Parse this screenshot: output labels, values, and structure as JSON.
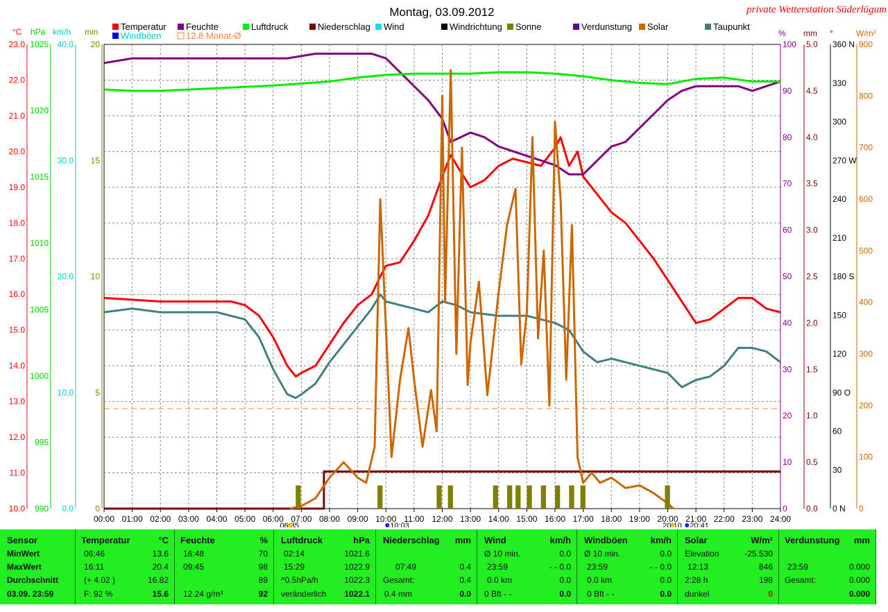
{
  "title": "Montag, 03.09.2012",
  "station": "private Wetterstation Süderlügum",
  "chart_data": {
    "type": "line",
    "x_range_hours": [
      0,
      24
    ],
    "x_ticks": [
      "00:00",
      "01:00",
      "02:00",
      "03:00",
      "04:00",
      "05:00",
      "06:00",
      "07:00",
      "08:00",
      "09:00",
      "10:00",
      "11:00",
      "12:00",
      "13:00",
      "14:00",
      "15:00",
      "16:00",
      "17:00",
      "18:00",
      "19:00",
      "20:00",
      "21:00",
      "22:00",
      "23:00",
      "24:00"
    ],
    "x_marks": [
      "06:35",
      "10:03",
      "20:10",
      "20:41"
    ],
    "legend": [
      {
        "name": "Temperatur",
        "color": "#ff0000"
      },
      {
        "name": "Feuchte",
        "color": "#800080"
      },
      {
        "name": "Luftdruck",
        "color": "#00ee00"
      },
      {
        "name": "Niederschlag",
        "color": "#800000"
      },
      {
        "name": "Wind",
        "color": "#00e5ee"
      },
      {
        "name": "Windrichtung",
        "color": "#000000"
      },
      {
        "name": "Sonne",
        "color": "#808000"
      },
      {
        "name": "Verdunstung",
        "color": "#660099"
      },
      {
        "name": "Solar",
        "color": "#cc6600"
      },
      {
        "name": "Taupunkt",
        "color": "#408080"
      },
      {
        "name": "Windböen",
        "color": "#0000ff"
      },
      {
        "name": "12.8 Monat-Ø",
        "color": "#ff8040"
      }
    ],
    "axes": {
      "temp": {
        "unit": "°C",
        "range": [
          10,
          23
        ],
        "ticks": [
          "23.0",
          "22.0",
          "21.0",
          "20.0",
          "19.0",
          "18.0",
          "17.0",
          "16.0",
          "15.0",
          "14.0",
          "13.0",
          "12.0",
          "11.0",
          "10.0"
        ]
      },
      "press": {
        "unit": "hPa",
        "range": [
          990,
          1025
        ],
        "ticks": [
          "1025",
          "1020",
          "1015",
          "1010",
          "1005",
          "1000",
          "995",
          "990"
        ]
      },
      "wind": {
        "unit": "km/h",
        "range": [
          0,
          40
        ],
        "ticks": [
          "40.0",
          "30.0",
          "20.0",
          "10.0",
          "0.0"
        ]
      },
      "sun": {
        "unit": "min",
        "range": [
          0,
          20
        ],
        "ticks": [
          "20",
          "15",
          "10",
          "5",
          "0"
        ]
      },
      "humidity": {
        "unit": "%",
        "range": [
          0,
          100
        ],
        "ticks": [
          "100",
          "90",
          "80",
          "70",
          "60",
          "50",
          "40",
          "30",
          "20",
          "10",
          "0"
        ]
      },
      "rain": {
        "unit": "mm",
        "range": [
          0,
          5
        ],
        "ticks": [
          "5.0",
          "4.5",
          "4.0",
          "3.5",
          "3.0",
          "2.5",
          "2.0",
          "1.5",
          "1.0",
          "0.5",
          "0.0"
        ]
      },
      "direction": {
        "unit": "°",
        "range": [
          0,
          360
        ],
        "ticks": [
          "360 N",
          "330",
          "300",
          "270 W",
          "240",
          "210",
          "180 S",
          "150",
          "120",
          "90 O",
          "60",
          "30",
          "0 N"
        ]
      },
      "solar": {
        "unit": "W/m²",
        "range": [
          0,
          900
        ],
        "ticks": [
          "900",
          "800",
          "700",
          "600",
          "500",
          "400",
          "300",
          "200",
          "100",
          "0"
        ]
      }
    },
    "series": [
      {
        "name": "Temperatur",
        "axis": "temp",
        "color": "#ff0000",
        "x": [
          0,
          2,
          3.5,
          4.5,
          5,
          5.5,
          6,
          6.5,
          6.8,
          7,
          7.5,
          8,
          8.5,
          9,
          9.5,
          9.8,
          10,
          10.5,
          11,
          11.5,
          12,
          12.3,
          12.6,
          13,
          13.5,
          14,
          14.5,
          15,
          15.5,
          16,
          16.2,
          16.5,
          16.8,
          17,
          17.5,
          18,
          18.5,
          19,
          19.5,
          20,
          20.5,
          21,
          21.5,
          22,
          22.5,
          23,
          23.5,
          24
        ],
        "y": [
          15.9,
          15.8,
          15.8,
          15.8,
          15.7,
          15.4,
          14.8,
          14.0,
          13.7,
          13.8,
          14.0,
          14.6,
          15.2,
          15.7,
          16.0,
          16.5,
          16.8,
          16.9,
          17.5,
          18.2,
          19.3,
          19.9,
          19.5,
          19.0,
          19.2,
          19.6,
          19.8,
          19.7,
          19.6,
          20.1,
          20.4,
          19.6,
          20.0,
          19.3,
          18.8,
          18.3,
          18.0,
          17.5,
          17.0,
          16.4,
          15.8,
          15.2,
          15.3,
          15.6,
          15.9,
          15.9,
          15.6,
          15.5
        ]
      },
      {
        "name": "Feuchte",
        "axis": "humidity",
        "color": "#800080",
        "x": [
          0,
          1,
          5,
          6.5,
          7.5,
          9,
          9.5,
          10,
          10.5,
          11,
          11.5,
          12,
          12.3,
          13,
          13.5,
          14,
          15,
          16,
          16.5,
          17,
          17.5,
          18,
          18.5,
          19,
          19.5,
          20,
          20.5,
          21,
          21.5,
          22,
          22.5,
          23,
          23.5,
          24
        ],
        "y": [
          96,
          97,
          97,
          97,
          98,
          98,
          98,
          97,
          94,
          91,
          88,
          84,
          79,
          81,
          80,
          78,
          76,
          74,
          72,
          72,
          75,
          78,
          79,
          82,
          85,
          88,
          90,
          91,
          91,
          91,
          91,
          90,
          91,
          92
        ]
      },
      {
        "name": "Luftdruck",
        "axis": "press",
        "color": "#00ee00",
        "x": [
          0,
          1,
          2,
          4,
          6,
          8,
          9,
          10,
          11,
          12,
          13,
          14,
          15,
          16,
          17,
          18,
          19,
          20,
          21,
          22,
          23,
          24
        ],
        "y": [
          1021.6,
          1021.5,
          1021.5,
          1021.7,
          1021.9,
          1022.2,
          1022.5,
          1022.7,
          1022.8,
          1022.8,
          1022.8,
          1022.9,
          1022.9,
          1022.8,
          1022.6,
          1022.3,
          1022.1,
          1022.0,
          1022.4,
          1022.5,
          1022.2,
          1022.2
        ]
      },
      {
        "name": "Taupunkt",
        "axis": "temp",
        "color": "#408080",
        "x": [
          0,
          1,
          2,
          3,
          4,
          5,
          5.5,
          6,
          6.5,
          6.8,
          7,
          7.5,
          8,
          8.5,
          9,
          9.5,
          9.8,
          10,
          10.5,
          11,
          11.5,
          12,
          12.5,
          13,
          14,
          15,
          16,
          16.5,
          17,
          17.5,
          18,
          19,
          20,
          20.5,
          21,
          21.5,
          22,
          22.5,
          23,
          23.5,
          24
        ],
        "y": [
          15.5,
          15.6,
          15.5,
          15.5,
          15.5,
          15.3,
          14.8,
          13.9,
          13.2,
          13.1,
          13.2,
          13.5,
          14.1,
          14.6,
          15.1,
          15.6,
          16.0,
          15.8,
          15.7,
          15.6,
          15.5,
          15.8,
          15.7,
          15.5,
          15.4,
          15.4,
          15.2,
          15.0,
          14.4,
          14.1,
          14.2,
          14.0,
          13.8,
          13.4,
          13.6,
          13.7,
          14.0,
          14.5,
          14.5,
          14.4,
          14.1
        ]
      },
      {
        "name": "Niederschlag",
        "axis": "rain",
        "color": "#800000",
        "x": [
          0,
          7.8,
          7.8,
          24
        ],
        "y": [
          0,
          0,
          0.4,
          0.4
        ]
      },
      {
        "name": "Solar",
        "axis": "solar",
        "color": "#cc6600",
        "x": [
          6.6,
          7.0,
          7.5,
          8.0,
          8.5,
          9.0,
          9.3,
          9.6,
          9.8,
          10.0,
          10.2,
          10.5,
          10.8,
          11.0,
          11.3,
          11.6,
          11.8,
          12.0,
          12.1,
          12.3,
          12.5,
          12.7,
          12.9,
          13.0,
          13.3,
          13.6,
          14.0,
          14.3,
          14.6,
          14.8,
          15.0,
          15.2,
          15.4,
          15.6,
          15.8,
          16.0,
          16.2,
          16.4,
          16.6,
          16.8,
          17.0,
          17.3,
          17.6,
          18.0,
          18.5,
          19.0,
          19.5,
          20.0,
          20.2
        ],
        "y": [
          0,
          5,
          20,
          60,
          90,
          60,
          50,
          120,
          600,
          350,
          100,
          250,
          350,
          250,
          120,
          230,
          150,
          800,
          400,
          850,
          300,
          700,
          240,
          320,
          440,
          220,
          420,
          550,
          620,
          280,
          380,
          720,
          330,
          500,
          200,
          750,
          600,
          250,
          550,
          100,
          50,
          70,
          50,
          60,
          40,
          45,
          30,
          10,
          0
        ]
      },
      {
        "name": "Sonne",
        "axis": "sun",
        "color": "#808000",
        "type": "bar",
        "x": [
          6.8,
          9.7,
          11.8,
          12.2,
          13.8,
          14.3,
          14.6,
          15.0,
          15.5,
          16.0,
          16.5,
          16.9,
          19.9
        ],
        "y": [
          1,
          1,
          1,
          1,
          1,
          1,
          1,
          1,
          1,
          1,
          1,
          1,
          1
        ]
      },
      {
        "name": "12.8 Monat-Ø",
        "axis": "temp",
        "color": "#ff8040",
        "type": "hline",
        "y": [
          12.8
        ]
      }
    ]
  },
  "stats": {
    "sensor": {
      "h": "Sensor",
      "r1": "MinWert",
      "r2": "MaxWert",
      "r3": "Durchschnitt",
      "r4": "03.09. 23:59"
    },
    "temp": {
      "h": "Temperatur",
      "u": "°C",
      "r1t": "06:46",
      "r1v": "13.6",
      "r2t": "16:11",
      "r2v": "20.4",
      "r3t": "(+ 4.02 )",
      "r3v": "16.82",
      "r4t": "F: 92 %",
      "r4v": "15.6"
    },
    "hum": {
      "h": "Feuchte",
      "u": "%",
      "r1t": "16:48",
      "r1v": "70",
      "r2t": "09:45",
      "r2v": "98",
      "r3v": "89",
      "r4t": "12.24 g/m³",
      "r4v": "92"
    },
    "press": {
      "h": "Luftdruck",
      "u": "hPa",
      "r1t": "02:14",
      "r1v": "1021.6",
      "r2t": "15:29",
      "r2v": "1022.9",
      "r3t": "^0.5hPa/h",
      "r3v": "1022.3",
      "r4t": "veränderlich",
      "r4v": "1022.1"
    },
    "rain": {
      "h": "Niederschlag",
      "u": "mm",
      "r2t": "07:49",
      "r2v": "0.4",
      "r3t": "Gesamt:",
      "r3v": "0.4",
      "r4t": "0.4 mm",
      "r4v": "0.0"
    },
    "wind": {
      "h": "Wind",
      "u": "km/h",
      "r1t": "Ø 10 min.",
      "r1v": "0.0",
      "r2t": "23:59",
      "r2v": "- - 0.0",
      "r3t": "0.0 km",
      "r3v": "0.0",
      "r4t": "0 Bft - -",
      "r4v": "0.0"
    },
    "gust": {
      "h": "Windböen",
      "u": "km/h",
      "r1t": "Ø 10 min.",
      "r1v": "0.0",
      "r2t": "23:59",
      "r2v": "- - 0.0",
      "r3t": "0.0 km",
      "r3v": "0.0",
      "r4t": "0 Bft - -",
      "r4v": "0.0"
    },
    "solar": {
      "h": "Solar",
      "u": "W/m²",
      "r1t": "Elevation",
      "r1v": "-25.530",
      "r2t": "12:13",
      "r2v": "846",
      "r3t": "2:28 h",
      "r3v": "198",
      "r4t": "dunkel",
      "r4v": "0"
    },
    "evap": {
      "h": "Verdunstung",
      "u": "mm",
      "r2t": "23:59",
      "r2v": "0.000",
      "r3t": "Gesamt:",
      "r3v": "0.000",
      "r4v": "0.000"
    }
  }
}
